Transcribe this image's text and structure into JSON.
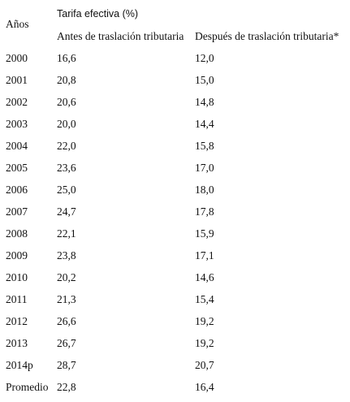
{
  "table": {
    "group_header": "Tarifa efectiva (%)",
    "year_header": "Años",
    "col_before": "Antes de traslación tributaria",
    "col_after": "Después de traslación tributaria*",
    "rows": [
      {
        "year": "2000",
        "before": "16,6",
        "after": "12,0"
      },
      {
        "year": "2001",
        "before": "20,8",
        "after": "15,0"
      },
      {
        "year": "2002",
        "before": "20,6",
        "after": "14,8"
      },
      {
        "year": "2003",
        "before": "20,0",
        "after": "14,4"
      },
      {
        "year": "2004",
        "before": "22,0",
        "after": "15,8"
      },
      {
        "year": "2005",
        "before": "23,6",
        "after": "17,0"
      },
      {
        "year": "2006",
        "before": "25,0",
        "after": "18,0"
      },
      {
        "year": "2007",
        "before": "24,7",
        "after": "17,8"
      },
      {
        "year": "2008",
        "before": "22,1",
        "after": "15,9"
      },
      {
        "year": "2009",
        "before": "23,8",
        "after": "17,1"
      },
      {
        "year": "2010",
        "before": "20,2",
        "after": "14,6"
      },
      {
        "year": "2011",
        "before": "21,3",
        "after": "15,4"
      },
      {
        "year": "2012",
        "before": "26,6",
        "after": "19,2"
      },
      {
        "year": "2013",
        "before": "26,7",
        "after": "19,2"
      },
      {
        "year": "2014p",
        "before": "28,7",
        "after": "20,7"
      },
      {
        "year": "Promedio",
        "before": "22,8",
        "after": "16,4"
      }
    ]
  }
}
